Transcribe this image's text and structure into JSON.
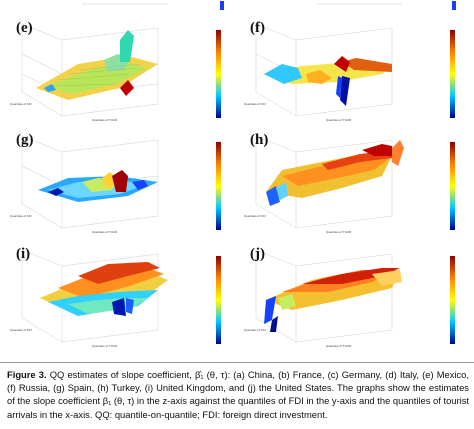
{
  "panels": [
    {
      "id": "e",
      "label": "(e)"
    },
    {
      "id": "f",
      "label": "(f)"
    },
    {
      "id": "g",
      "label": "(g)"
    },
    {
      "id": "h",
      "label": "(h)"
    },
    {
      "id": "i",
      "label": "(i)"
    },
    {
      "id": "j",
      "label": "(j)"
    }
  ],
  "axis_labels": {
    "x": "Quantiles of TOUR",
    "y": "Quantiles of FDI"
  },
  "colormap": {
    "low": "#00008f",
    "mid_low": "#00c8ff",
    "mid": "#ffff00",
    "mid_high": "#ff7f00",
    "high": "#8f0000"
  },
  "caption": {
    "lead": "Figure 3.",
    "body": " QQ estimates of slope coefficient, β̂₁ (θ, τ): (a) China, (b) France, (c) Germany, (d) Italy, (e) Mexico, (f) Russia, (g) Spain, (h) Turkey, (i) United Kingdom, and (j) the United States. The graphs show the estimates of the slope coefficient β₁ (θ, τ) in the z-axis against the quantiles of FDI in the y-axis and the quantiles of tourist arrivals in the x-axis. QQ: quantile-on-quantile; FDI: foreign direct investment."
  }
}
